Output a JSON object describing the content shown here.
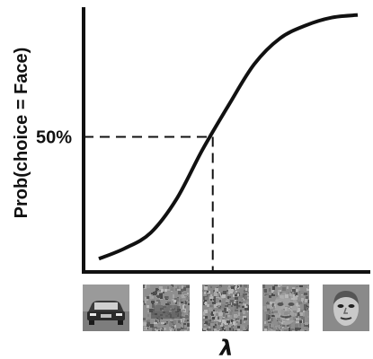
{
  "chart_data": {
    "type": "line",
    "xlabel": "λ",
    "ylabel": "Prob(choice = Face)",
    "y_tick_labels": [
      "50%"
    ],
    "curve": {
      "shape": "sigmoid",
      "x": [
        0.0,
        0.1,
        0.2,
        0.3,
        0.4,
        0.5,
        0.6,
        0.7,
        0.8,
        0.9,
        1.0
      ],
      "y": [
        0.03,
        0.07,
        0.13,
        0.26,
        0.45,
        0.62,
        0.78,
        0.88,
        0.93,
        0.96,
        0.97
      ]
    },
    "threshold": {
      "y": 0.5,
      "x": 0.44
    },
    "xlim": [
      0,
      1
    ],
    "ylim": [
      0,
      1
    ],
    "grid": false,
    "x_axis_images": [
      {
        "name": "car-image"
      },
      {
        "name": "noisy-car-image"
      },
      {
        "name": "noise-image"
      },
      {
        "name": "noisy-face-image"
      },
      {
        "name": "face-image"
      }
    ],
    "colors": {
      "line": "#111111",
      "thumb_bg": "#8a8a8a"
    }
  }
}
